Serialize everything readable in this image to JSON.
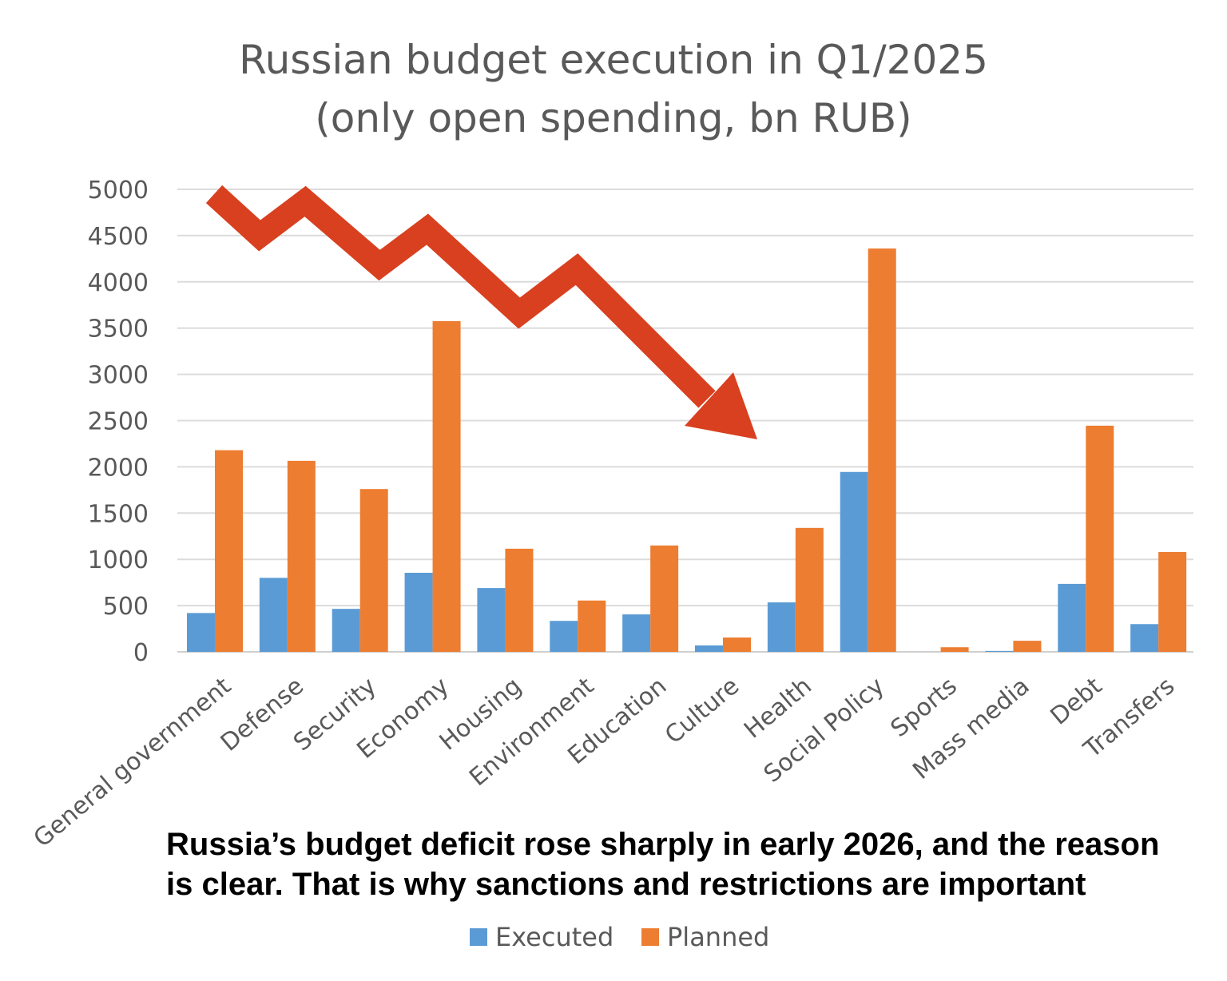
{
  "chart_data": {
    "type": "bar",
    "title": "Russian budget execution in Q1/2025",
    "subtitle": "(only open spending, bn RUB)",
    "categories": [
      "General government",
      "Defense",
      "Security",
      "Economy",
      "Housing",
      "Environment",
      "Education",
      "Culture",
      "Health",
      "Social Policy",
      "Sports",
      "Mass media",
      "Debt",
      "Transfers"
    ],
    "series": [
      {
        "name": "Executed",
        "color": "#5b9bd5",
        "values": [
          420,
          800,
          465,
          855,
          690,
          335,
          405,
          70,
          535,
          1945,
          0,
          10,
          735,
          300
        ]
      },
      {
        "name": "Planned",
        "color": "#ed7d31",
        "values": [
          2180,
          2065,
          1760,
          3575,
          1115,
          555,
          1150,
          155,
          1340,
          4360,
          50,
          120,
          2445,
          1080
        ]
      }
    ],
    "ylim": [
      0,
      5000
    ],
    "yticks": [
      0,
      500,
      1000,
      1500,
      2000,
      2500,
      3000,
      3500,
      4000,
      4500,
      5000
    ],
    "grid": true,
    "legend_position": "bottom",
    "annotation": {
      "type": "downward zigzag arrow",
      "color": "#d9401f"
    }
  },
  "caption": "Russia’s budget deficit rose sharply in early 2026, and the reason is clear. That is why sanctions and restrictions are important"
}
